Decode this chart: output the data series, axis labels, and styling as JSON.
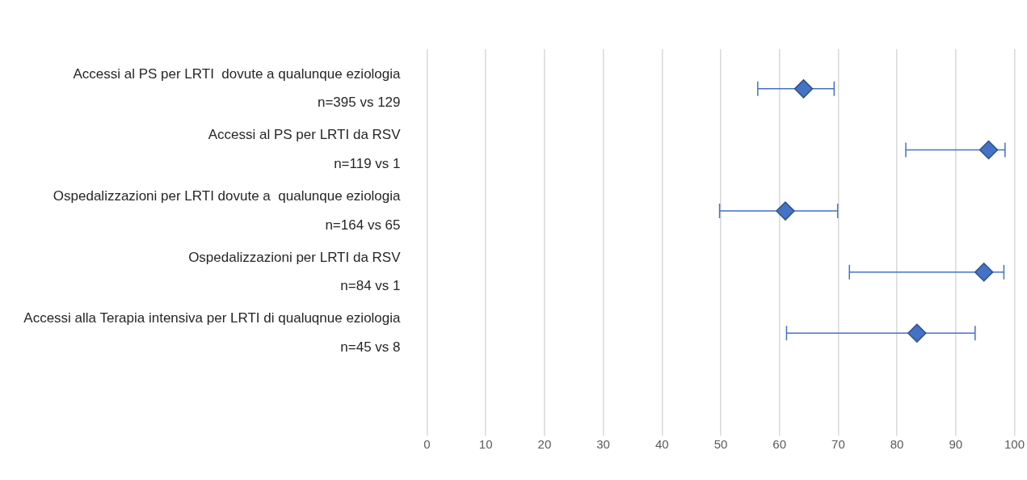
{
  "chart_data": {
    "type": "scatter",
    "orientation": "horizontal",
    "categories": [
      "Accessi al PS per LRTI  dovute a qualunque eziologia\nn=395 vs 129",
      "Accessi al PS per LRTI da RSV\nn=119 vs 1",
      "Ospedalizzazioni per LRTI dovute a  qualunque eziologia\nn=164 vs 65",
      "Ospedalizzazioni per LRTI da RSV\nn=84 vs 1",
      "Accessi alla Terapia intensiva per LRTI di qualuqnue eziologia\nn=45 vs 8"
    ],
    "values": [
      64.1,
      95.6,
      61.0,
      94.8,
      83.4
    ],
    "errors": [
      [
        56.3,
        69.3
      ],
      [
        81.5,
        98.4
      ],
      [
        49.8,
        69.9
      ],
      [
        71.9,
        98.2
      ],
      [
        61.2,
        93.3
      ]
    ],
    "color": "#4472c4",
    "marker": "diamond",
    "grid": "x",
    "legend": false,
    "xlim": [
      0,
      100
    ],
    "xticks": [
      0,
      10,
      20,
      30,
      40,
      50,
      60,
      70,
      80,
      90,
      100
    ]
  }
}
